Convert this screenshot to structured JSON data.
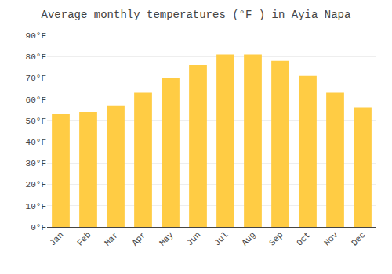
{
  "chart_data": {
    "type": "bar",
    "title": "Average monthly temperatures (°F ) in Ayia Napa",
    "categories": [
      "Jan",
      "Feb",
      "Mar",
      "Apr",
      "May",
      "Jun",
      "Jul",
      "Aug",
      "Sep",
      "Oct",
      "Nov",
      "Dec"
    ],
    "values": [
      53,
      54,
      57,
      63,
      70,
      76,
      81,
      81,
      78,
      71,
      63,
      56
    ],
    "color": "#FFCC44",
    "ylim": [
      0,
      90
    ],
    "yticks": [
      {
        "value": 0,
        "label": "0°F"
      },
      {
        "value": 10,
        "label": "10°F"
      },
      {
        "value": 20,
        "label": "20°F"
      },
      {
        "value": 30,
        "label": "30°F"
      },
      {
        "value": 40,
        "label": "40°F"
      },
      {
        "value": 50,
        "label": "50°F"
      },
      {
        "value": 60,
        "label": "60°F"
      },
      {
        "value": 70,
        "label": "70°F"
      },
      {
        "value": 80,
        "label": "80°F"
      },
      {
        "value": 90,
        "label": "90°F"
      }
    ],
    "grid": true
  }
}
